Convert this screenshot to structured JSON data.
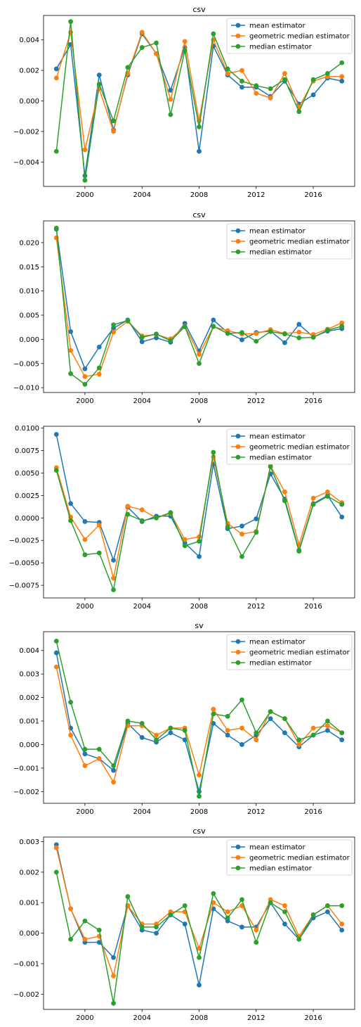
{
  "chart_data": [
    {
      "type": "line",
      "title": "csv",
      "xlabel": "",
      "ylabel": "",
      "xlim": [
        1997.1,
        2018.9
      ],
      "ylim": [
        -0.0056,
        0.0056
      ],
      "xticks": [
        2000,
        2004,
        2008,
        2012,
        2016
      ],
      "yticks": [
        -0.004,
        -0.002,
        0.0,
        0.002,
        0.004
      ],
      "ytick_labels": [
        "−0.004",
        "−0.002",
        "0.000",
        "0.002",
        "0.004"
      ],
      "x": [
        1998,
        1999,
        2000,
        2001,
        2002,
        2003,
        2004,
        2005,
        2006,
        2007,
        2008,
        2009,
        2010,
        2011,
        2012,
        2013,
        2014,
        2015,
        2016,
        2017,
        2018
      ],
      "series": [
        {
          "name": "mean estimator",
          "color": "#1f77b4",
          "values": [
            0.0021,
            0.0037,
            -0.0049,
            0.0017,
            -0.0019,
            0.0017,
            0.0044,
            0.0031,
            0.0007,
            0.0035,
            -0.0033,
            0.0036,
            0.0017,
            0.0009,
            0.0009,
            0.0003,
            0.0013,
            -0.0002,
            0.0004,
            0.0015,
            0.0013
          ]
        },
        {
          "name": "geometric median estimator",
          "color": "#ff7f0e",
          "values": [
            0.0015,
            0.0045,
            -0.0032,
            0.0008,
            -0.002,
            0.0018,
            0.0045,
            0.0031,
            0.0001,
            0.0039,
            -0.0013,
            0.004,
            0.0018,
            0.002,
            0.0005,
            0.0002,
            0.0018,
            -0.0004,
            0.0013,
            0.0016,
            0.0016
          ]
        },
        {
          "name": "median estimator",
          "color": "#2ca02c",
          "values": [
            -0.0033,
            0.0052,
            -0.0052,
            0.0011,
            -0.0013,
            0.0022,
            0.0035,
            0.0038,
            -0.0009,
            0.0033,
            -0.0017,
            0.0044,
            0.0021,
            0.0013,
            0.001,
            0.0008,
            0.0014,
            -0.0007,
            0.0014,
            0.0018,
            0.0025
          ]
        }
      ]
    },
    {
      "type": "line",
      "title": "csv",
      "xlabel": "",
      "ylabel": "",
      "xlim": [
        1997.1,
        2018.9
      ],
      "ylim": [
        -0.011,
        0.0245
      ],
      "xticks": [
        2000,
        2004,
        2008,
        2012,
        2016
      ],
      "yticks": [
        -0.01,
        -0.005,
        0.0,
        0.005,
        0.01,
        0.015,
        0.02
      ],
      "ytick_labels": [
        "−0.010",
        "−0.005",
        "0.000",
        "0.005",
        "0.010",
        "0.015",
        "0.020"
      ],
      "x": [
        1998,
        1999,
        2000,
        2001,
        2002,
        2003,
        2004,
        2005,
        2006,
        2007,
        2008,
        2009,
        2010,
        2011,
        2012,
        2013,
        2014,
        2015,
        2016,
        2017,
        2018
      ],
      "series": [
        {
          "name": "mean estimator",
          "color": "#1f77b4",
          "values": [
            0.0228,
            0.0016,
            -0.0061,
            -0.0016,
            0.0023,
            0.004,
            -0.0005,
            0.0003,
            -0.0006,
            0.0033,
            -0.0024,
            0.004,
            0.0014,
            -0.0001,
            0.0014,
            0.0017,
            -0.0007,
            0.0031,
            0.0005,
            0.0017,
            0.0022
          ]
        },
        {
          "name": "geometric median estimator",
          "color": "#ff7f0e",
          "values": [
            0.021,
            -0.0023,
            -0.0077,
            -0.0072,
            0.0015,
            0.0037,
            0.0007,
            0.001,
            0.0001,
            0.0027,
            -0.0031,
            0.0026,
            0.0018,
            0.0011,
            0.0012,
            0.002,
            0.0012,
            0.0015,
            0.001,
            0.0021,
            0.0034
          ]
        },
        {
          "name": "median estimator",
          "color": "#2ca02c",
          "values": [
            0.023,
            -0.0071,
            -0.0093,
            -0.0059,
            0.003,
            0.0039,
            0.0004,
            0.0011,
            -0.0003,
            0.0026,
            -0.005,
            0.0027,
            0.0012,
            0.0014,
            -0.0004,
            0.0016,
            0.0011,
            0.0003,
            0.0004,
            0.0019,
            0.0027
          ]
        }
      ]
    },
    {
      "type": "line",
      "title": "v",
      "xlabel": "",
      "ylabel": "",
      "xlim": [
        1997.1,
        2018.9
      ],
      "ylim": [
        -0.0089,
        0.0102
      ],
      "xticks": [
        2000,
        2004,
        2008,
        2012,
        2016
      ],
      "yticks": [
        -0.0075,
        -0.005,
        -0.0025,
        0.0,
        0.0025,
        0.005,
        0.0075,
        0.01
      ],
      "ytick_labels": [
        "−0.0075",
        "−0.0050",
        "−0.0025",
        "0.0000",
        "0.0025",
        "0.0050",
        "0.0075",
        "0.0100"
      ],
      "x": [
        1998,
        1999,
        2000,
        2001,
        2002,
        2003,
        2004,
        2005,
        2006,
        2007,
        2008,
        2009,
        2010,
        2011,
        2012,
        2013,
        2014,
        2015,
        2016,
        2017,
        2018
      ],
      "series": [
        {
          "name": "mean estimator",
          "color": "#1f77b4",
          "values": [
            0.0093,
            0.0016,
            -0.0004,
            -0.0005,
            -0.0047,
            0.0012,
            -0.0004,
            0.0002,
            0.0002,
            -0.0028,
            -0.0043,
            0.006,
            -0.0012,
            -0.0009,
            -0.0001,
            0.0049,
            0.0021,
            -0.0036,
            0.0016,
            0.0025,
            0.0001
          ]
        },
        {
          "name": "geometric median estimator",
          "color": "#ff7f0e",
          "values": [
            0.0056,
            0.0001,
            -0.0024,
            -0.0008,
            -0.0067,
            0.0013,
            0.0009,
            0.0,
            0.0005,
            -0.0024,
            -0.0021,
            0.0068,
            -0.0006,
            -0.0018,
            -0.0015,
            0.0058,
            0.0029,
            -0.003,
            0.0022,
            0.0029,
            0.0017
          ]
        },
        {
          "name": "median estimator",
          "color": "#2ca02c",
          "values": [
            0.0053,
            -0.0003,
            -0.0041,
            -0.0039,
            -0.008,
            0.0004,
            -0.0003,
            0.0,
            0.0006,
            -0.0031,
            -0.0026,
            0.0073,
            -0.001,
            -0.0043,
            -0.0016,
            0.0057,
            0.0019,
            -0.0037,
            0.0015,
            0.0024,
            0.0015
          ]
        }
      ]
    },
    {
      "type": "line",
      "title": "sv",
      "xlabel": "",
      "ylabel": "",
      "xlim": [
        1997.1,
        2018.9
      ],
      "ylim": [
        -0.0025,
        0.0048
      ],
      "xticks": [
        2000,
        2004,
        2008,
        2012,
        2016
      ],
      "yticks": [
        -0.002,
        -0.001,
        0.0,
        0.001,
        0.002,
        0.003,
        0.004
      ],
      "ytick_labels": [
        "−0.002",
        "−0.001",
        "0.000",
        "0.001",
        "0.002",
        "0.003",
        "0.004"
      ],
      "x": [
        1998,
        1999,
        2000,
        2001,
        2002,
        2003,
        2004,
        2005,
        2006,
        2007,
        2008,
        2009,
        2010,
        2011,
        2012,
        2013,
        2014,
        2015,
        2016,
        2017,
        2018
      ],
      "series": [
        {
          "name": "mean estimator",
          "color": "#1f77b4",
          "values": [
            0.0039,
            0.0007,
            -0.0004,
            -0.0006,
            -0.0011,
            0.0009,
            0.0003,
            0.0001,
            0.0005,
            0.0002,
            -0.002,
            0.0009,
            0.0004,
            0.0,
            0.0004,
            0.0011,
            0.0005,
            -0.0001,
            0.0004,
            0.0006,
            0.0002
          ]
        },
        {
          "name": "geometric median estimator",
          "color": "#ff7f0e",
          "values": [
            0.0033,
            0.0004,
            -0.0009,
            -0.0006,
            -0.0016,
            0.0008,
            0.0008,
            0.0004,
            0.0007,
            0.0007,
            -0.0013,
            0.0015,
            0.0006,
            0.0007,
            0.0002,
            0.0014,
            0.0011,
            0.0,
            0.0007,
            0.0008,
            0.0005
          ]
        },
        {
          "name": "median estimator",
          "color": "#2ca02c",
          "values": [
            0.0044,
            0.0018,
            -0.0002,
            -0.0002,
            -0.0009,
            0.001,
            0.0009,
            0.0002,
            0.0007,
            0.0006,
            -0.0022,
            0.0013,
            0.0012,
            0.0019,
            0.0005,
            0.0014,
            0.0011,
            0.0002,
            0.0004,
            0.001,
            0.0005
          ]
        }
      ]
    },
    {
      "type": "line",
      "title": "csv",
      "xlabel": "",
      "ylabel": "",
      "xlim": [
        1997.1,
        2018.9
      ],
      "ylim": [
        -0.0025,
        0.00315
      ],
      "xticks": [
        2000,
        2004,
        2008,
        2012,
        2016
      ],
      "yticks": [
        -0.002,
        -0.001,
        0.0,
        0.001,
        0.002,
        0.003
      ],
      "ytick_labels": [
        "−0.002",
        "−0.001",
        "0.000",
        "0.001",
        "0.002",
        "0.003"
      ],
      "x": [
        1998,
        1999,
        2000,
        2001,
        2002,
        2003,
        2004,
        2005,
        2006,
        2007,
        2008,
        2009,
        2010,
        2011,
        2012,
        2013,
        2014,
        2015,
        2016,
        2017,
        2018
      ],
      "series": [
        {
          "name": "mean estimator",
          "color": "#1f77b4",
          "values": [
            0.0029,
            0.0008,
            -0.0003,
            -0.0003,
            -0.0008,
            0.0009,
            0.0001,
            0.0,
            0.0006,
            0.0003,
            -0.0017,
            0.0008,
            0.0004,
            0.0002,
            0.0002,
            0.001,
            0.0003,
            -0.0002,
            0.0005,
            0.0007,
            0.0001
          ]
        },
        {
          "name": "geometric median estimator",
          "color": "#ff7f0e",
          "values": [
            0.0028,
            0.0008,
            -0.0002,
            -0.0001,
            -0.0014,
            0.0009,
            0.0003,
            0.0003,
            0.0007,
            0.0007,
            -0.0005,
            0.001,
            0.0007,
            0.0009,
            0.0001,
            0.0011,
            0.0009,
            -0.0001,
            0.0006,
            0.0009,
            0.0003
          ]
        },
        {
          "name": "median estimator",
          "color": "#2ca02c",
          "values": [
            0.002,
            -0.0002,
            0.0004,
            0.0001,
            -0.0023,
            0.0012,
            0.0002,
            0.0002,
            0.0006,
            0.0009,
            -0.0008,
            0.0013,
            0.0005,
            0.0011,
            -0.0003,
            0.001,
            0.0007,
            -0.0002,
            0.0006,
            0.0009,
            0.0009
          ]
        }
      ]
    }
  ]
}
